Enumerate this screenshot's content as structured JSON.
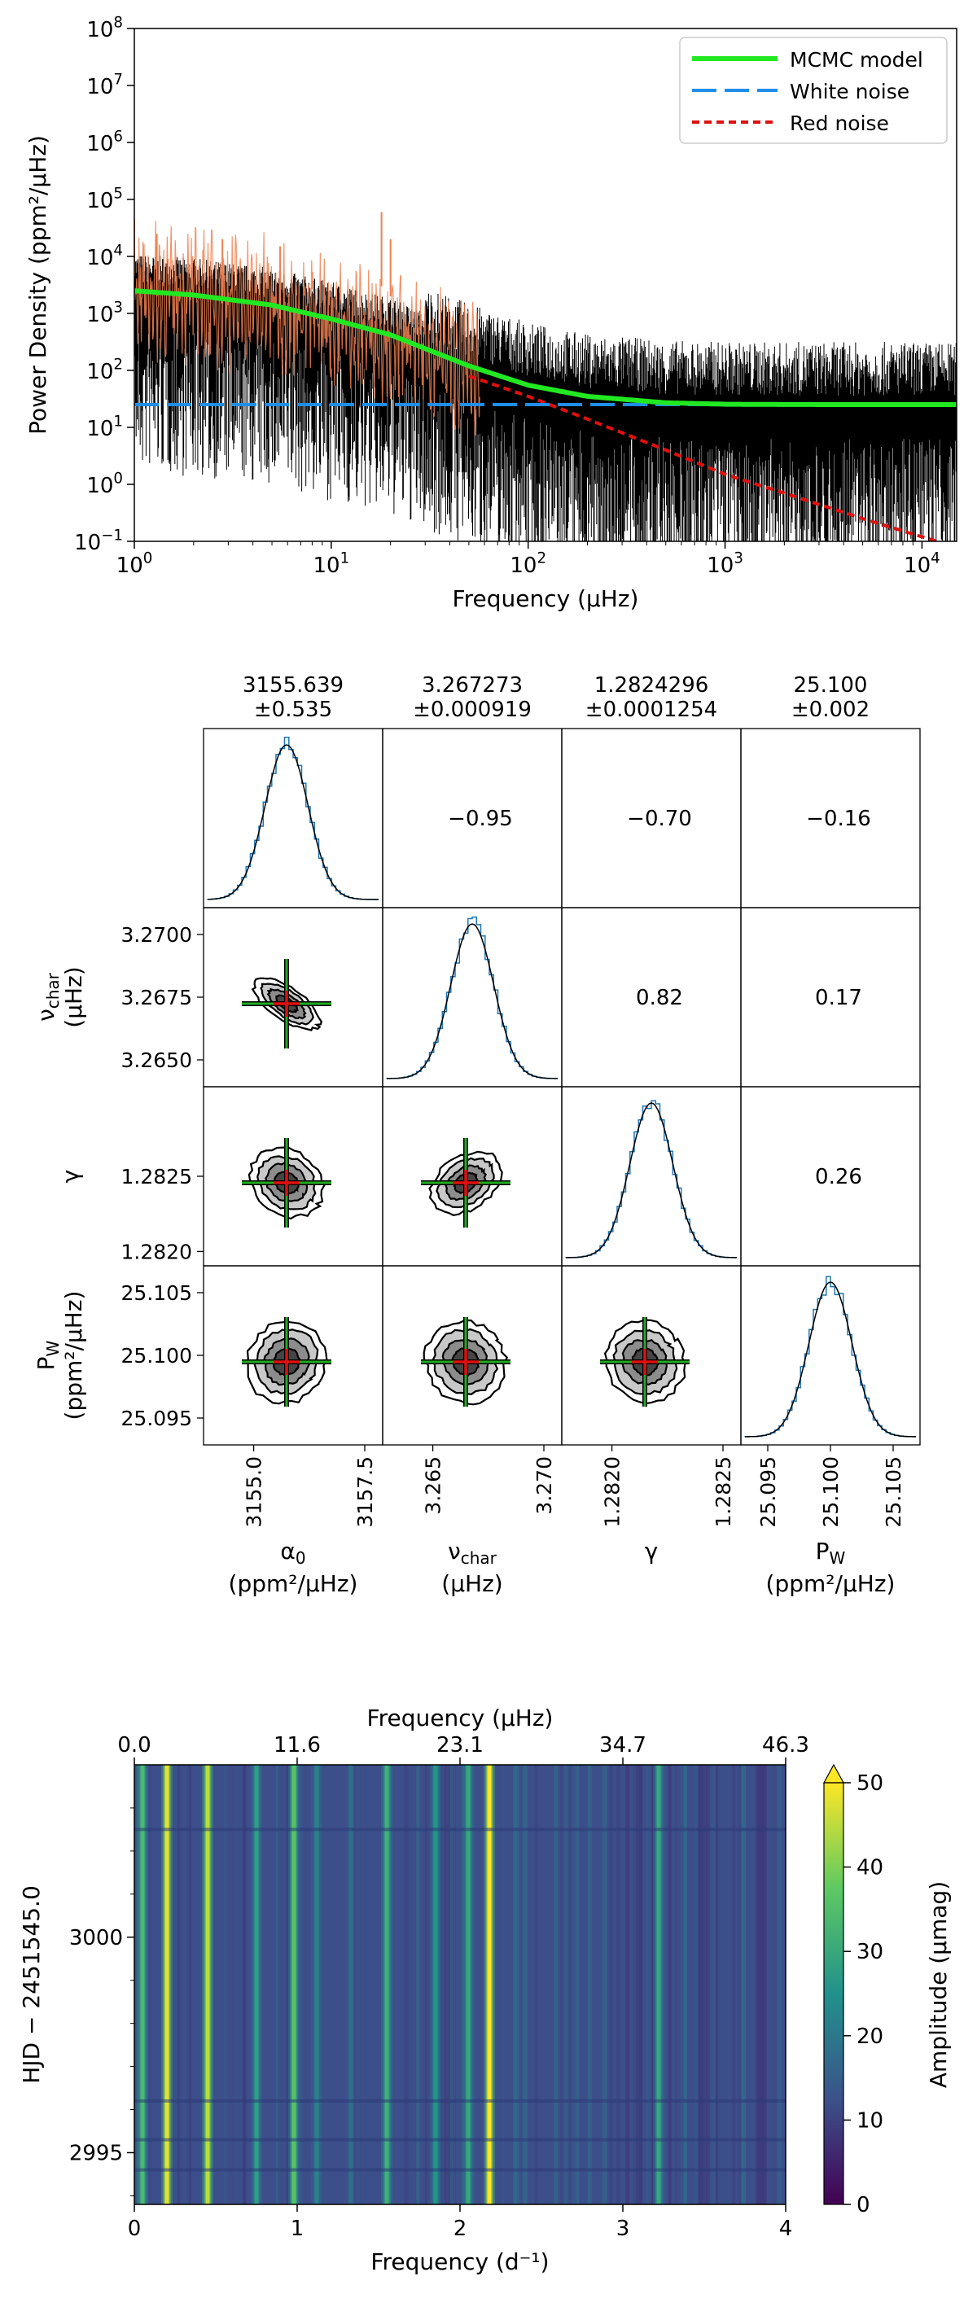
{
  "chart_data": [
    {
      "type": "line",
      "xlabel": "Frequency (μHz)",
      "ylabel": "Power Density (ppm²/μHz)",
      "xscale": "log",
      "yscale": "log",
      "xlim": [
        1,
        15000
      ],
      "ylim": [
        0.1,
        100000000
      ],
      "x_ticks": [
        {
          "base": "10",
          "exp": "0"
        },
        {
          "base": "10",
          "exp": "1"
        },
        {
          "base": "10",
          "exp": "2"
        },
        {
          "base": "10",
          "exp": "3"
        },
        {
          "base": "10",
          "exp": "4"
        }
      ],
      "y_ticks": [
        {
          "base": "10",
          "exp": "−1"
        },
        {
          "base": "10",
          "exp": "0"
        },
        {
          "base": "10",
          "exp": "1"
        },
        {
          "base": "10",
          "exp": "2"
        },
        {
          "base": "10",
          "exp": "3"
        },
        {
          "base": "10",
          "exp": "4"
        },
        {
          "base": "10",
          "exp": "5"
        },
        {
          "base": "10",
          "exp": "6"
        },
        {
          "base": "10",
          "exp": "7"
        },
        {
          "base": "10",
          "exp": "8"
        }
      ],
      "legend_position": "top-right",
      "series": [
        {
          "name": "MCMC model",
          "color": "#22e822",
          "style": "solid",
          "x": [
            1,
            2,
            5,
            10,
            20,
            50,
            100,
            200,
            500,
            1000,
            2000,
            5000,
            10000,
            15000
          ],
          "values": [
            2500,
            2100,
            1400,
            800,
            420,
            120,
            55,
            35,
            27,
            25.5,
            25.2,
            25.1,
            25.1,
            25.1
          ]
        },
        {
          "name": "White noise",
          "color": "#1f8ee8",
          "style": "dashed",
          "x": [
            1,
            2000
          ],
          "values": [
            25.1,
            25.1
          ]
        },
        {
          "name": "Red noise",
          "color": "#e01010",
          "style": "dotted",
          "x": [
            50,
            100,
            200,
            500,
            1000,
            2000,
            5000,
            10000,
            15000
          ],
          "values": [
            80,
            35,
            14,
            4,
            1.5,
            0.7,
            0.25,
            0.12,
            0.08
          ]
        }
      ],
      "spectrum_peaks": [
        {
          "x": 1,
          "values": [
            4500,
            45000
          ]
        },
        {
          "x": 1.3,
          "values": [
            2000,
            25000
          ]
        },
        {
          "x": 1.9,
          "values": [
            5000,
            7000
          ]
        },
        {
          "x": 2.8,
          "values": [
            1500,
            20000
          ]
        },
        {
          "x": 5.5,
          "values": [
            800,
            15000
          ]
        },
        {
          "x": 18,
          "values": [
            3000,
            60000
          ]
        },
        {
          "x": 20,
          "values": [
            2000,
            20000
          ]
        }
      ]
    },
    {
      "type": "corner",
      "parameters": [
        {
          "name": "α",
          "sub": "0",
          "unit": "(ppm²/μHz)",
          "value": "3155.639",
          "error": "±0.535",
          "ticks": [
            "3155.0",
            "3157.5"
          ]
        },
        {
          "name": "ν",
          "sub": "char",
          "unit": "(μHz)",
          "value": "3.267273",
          "error": "±0.000919",
          "ticks": [
            "3.265",
            "3.270"
          ]
        },
        {
          "name": "γ",
          "sub": "",
          "unit": "",
          "value": "1.2824296",
          "error": "±0.0001254",
          "ticks": [
            "1.2820",
            "1.2825"
          ]
        },
        {
          "name": "P",
          "sub": "W",
          "unit": "(ppm²/μHz)",
          "value": "25.100",
          "error": "±0.002",
          "ticks": [
            "25.095",
            "25.100",
            "25.105"
          ]
        }
      ],
      "y_ticks": [
        {
          "row": 1,
          "labels": [
            "3.2700",
            "3.2675",
            "3.2650"
          ]
        },
        {
          "row": 2,
          "labels": [
            "1.2825",
            "1.2820"
          ]
        },
        {
          "row": 3,
          "labels": [
            "25.105",
            "25.100",
            "25.095"
          ]
        }
      ],
      "correlations": [
        {
          "row": 0,
          "col": 1,
          "value": "−0.95"
        },
        {
          "row": 0,
          "col": 2,
          "value": "−0.70"
        },
        {
          "row": 0,
          "col": 3,
          "value": "−0.16"
        },
        {
          "row": 1,
          "col": 2,
          "value": "0.82"
        },
        {
          "row": 1,
          "col": 3,
          "value": "0.17"
        },
        {
          "row": 2,
          "col": 3,
          "value": "0.26"
        }
      ],
      "pair_panels": [
        {
          "row": 1,
          "col": 0,
          "correlation": -0.95
        },
        {
          "row": 2,
          "col": 0,
          "correlation": -0.7
        },
        {
          "row": 2,
          "col": 1,
          "correlation": 0.82
        },
        {
          "row": 3,
          "col": 0,
          "correlation": -0.16
        },
        {
          "row": 3,
          "col": 1,
          "correlation": 0.17
        },
        {
          "row": 3,
          "col": 2,
          "correlation": 0.26
        }
      ],
      "colors": {
        "hist": "#1f77b4",
        "fit": "#000000",
        "errorbar": "#22aa22",
        "marker": "#e01010"
      }
    },
    {
      "type": "heatmap",
      "xlabel_bottom": "Frequency (d⁻¹)",
      "xlabel_top": "Frequency (μHz)",
      "ylabel": "HJD − 2451545.0",
      "colorbar_label": "Amplitude (μmag)",
      "x_ticks_bottom": [
        "0",
        "1",
        "2",
        "3",
        "4"
      ],
      "x_ticks_top": [
        "0.0",
        "11.6",
        "23.1",
        "34.7",
        "46.3"
      ],
      "y_ticks": [
        "3000",
        "2995"
      ],
      "colorbar_ticks": [
        "0",
        "10",
        "20",
        "30",
        "40",
        "50"
      ],
      "xlim": [
        0,
        4
      ],
      "ylim": [
        2993.8,
        3004
      ],
      "clim": [
        0,
        50
      ],
      "colormap": "viridis",
      "bright_bands": [
        {
          "frequency": 0.05,
          "amplitude": 34
        },
        {
          "frequency": 0.2,
          "amplitude": 48
        },
        {
          "frequency": 0.45,
          "amplitude": 45
        },
        {
          "frequency": 0.75,
          "amplitude": 28
        },
        {
          "frequency": 0.98,
          "amplitude": 36
        },
        {
          "frequency": 1.12,
          "amplitude": 22
        },
        {
          "frequency": 1.33,
          "amplitude": 18
        },
        {
          "frequency": 1.55,
          "amplitude": 32
        },
        {
          "frequency": 1.85,
          "amplitude": 26
        },
        {
          "frequency": 2.05,
          "amplitude": 30
        },
        {
          "frequency": 2.18,
          "amplitude": 50
        },
        {
          "frequency": 2.4,
          "amplitude": 16
        },
        {
          "frequency": 2.65,
          "amplitude": 14
        },
        {
          "frequency": 2.95,
          "amplitude": 12
        },
        {
          "frequency": 3.22,
          "amplitude": 30
        },
        {
          "frequency": 3.5,
          "amplitude": 10
        },
        {
          "frequency": 3.85,
          "amplitude": 9
        }
      ],
      "horizontal_streaks": [
        2994.6,
        2995.3,
        2996.2,
        3002.5
      ]
    }
  ]
}
